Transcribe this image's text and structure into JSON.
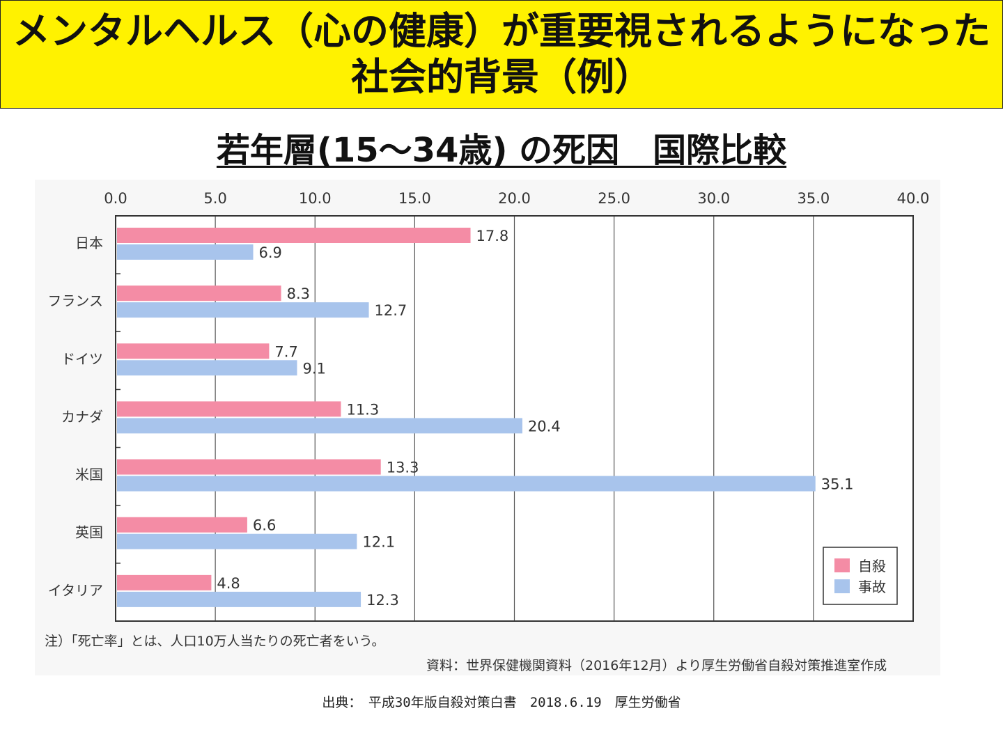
{
  "banner": {
    "line1": "メンタルヘルス（心の健康）が重要視されるようになった",
    "line2": "社会的背景（例）"
  },
  "colors": {
    "banner_bg": "#fff200",
    "suicide": "#f48ca5",
    "accident": "#a8c4ec"
  },
  "chart_data": {
    "type": "bar",
    "orientation": "horizontal",
    "title": "若年層(15～34歳) の死因　国際比較",
    "categories": [
      "日本",
      "フランス",
      "ドイツ",
      "カナダ",
      "米国",
      "英国",
      "イタリア"
    ],
    "series": [
      {
        "name": "自殺",
        "values": [
          17.8,
          8.3,
          7.7,
          11.3,
          13.3,
          6.6,
          4.8
        ]
      },
      {
        "name": "事故",
        "values": [
          6.9,
          12.7,
          9.1,
          20.4,
          35.1,
          12.1,
          12.3
        ]
      }
    ],
    "xlim": [
      0,
      40
    ],
    "xticks": [
      "0.0",
      "5.0",
      "10.0",
      "15.0",
      "20.0",
      "25.0",
      "30.0",
      "35.0",
      "40.0"
    ],
    "xlabel": "",
    "ylabel": "",
    "grid": true,
    "legend_position": "bottom-right"
  },
  "note": "注）「死亡率」とは、人口10万人当たりの死亡者をいう。",
  "source": "資料：世界保健機関資料（2016年12月）より厚生労働省自殺対策推進室作成",
  "credit": "出典：　平成30年版自殺対策白書　2018.6.19　厚生労働省"
}
